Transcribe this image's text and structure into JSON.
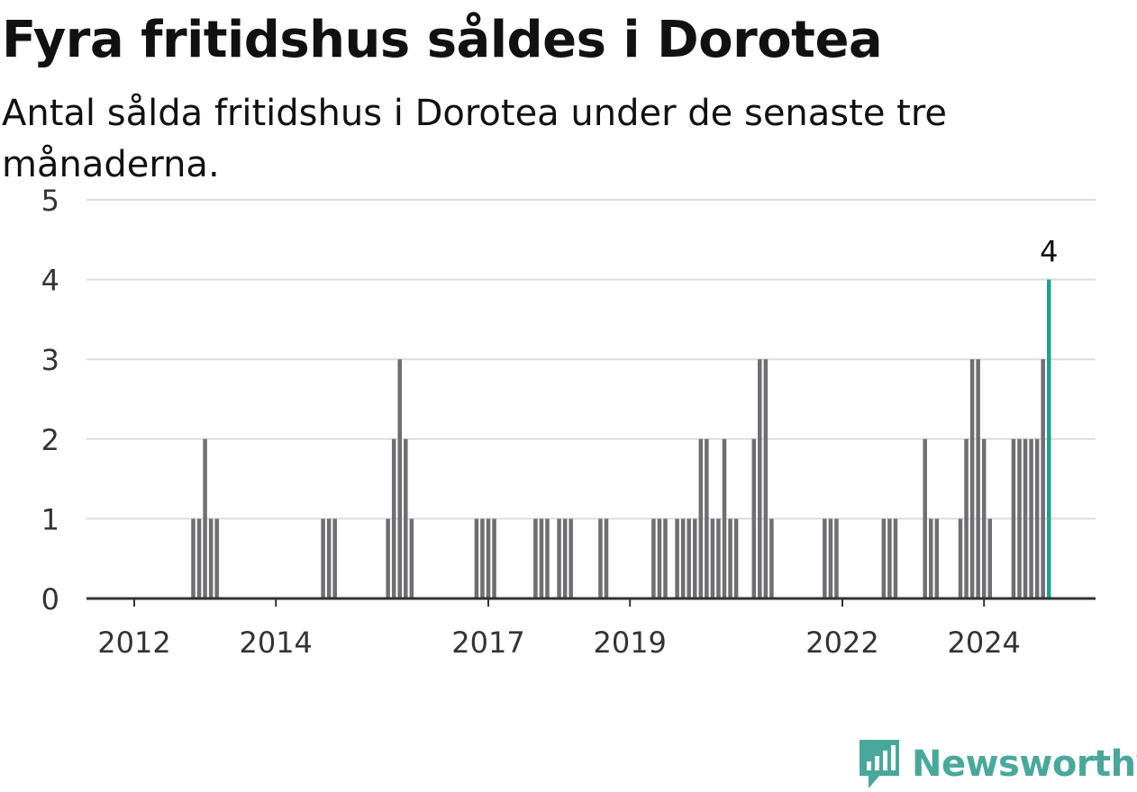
{
  "title": "Fyra fritidshus såldes i Dorotea",
  "subtitle": "Antal sålda fritidshus i Dorotea under de senaste tre månaderna.",
  "brand": {
    "name": "Newsworthy",
    "icon": "newsworthy-logo-icon"
  },
  "colors": {
    "bar": "#6e6e73",
    "highlight": "#1ea191",
    "grid": "#dddddd",
    "axis": "#333333",
    "brand": "#49a89c"
  },
  "chart_data": {
    "type": "bar",
    "title": "Fyra fritidshus såldes i Dorotea",
    "subtitle": "Antal sålda fritidshus i Dorotea under de senaste tre månaderna.",
    "xlabel": "",
    "ylabel": "",
    "ylim": [
      0,
      5
    ],
    "yticks": [
      0,
      1,
      2,
      3,
      4,
      5
    ],
    "grid": true,
    "legend": "none",
    "x_ticks": [
      {
        "label": "2012",
        "date": "2012-01"
      },
      {
        "label": "2014",
        "date": "2014-01"
      },
      {
        "label": "2017",
        "date": "2017-01"
      },
      {
        "label": "2019",
        "date": "2019-01"
      },
      {
        "label": "2022",
        "date": "2022-01"
      },
      {
        "label": "2024",
        "date": "2024-01"
      }
    ],
    "x_range": [
      "2011-07",
      "2025-10"
    ],
    "series": [
      {
        "values": [
          {
            "date": "2012-11",
            "value": 1
          },
          {
            "date": "2012-12",
            "value": 1
          },
          {
            "date": "2013-01",
            "value": 2
          },
          {
            "date": "2013-02",
            "value": 1
          },
          {
            "date": "2013-03",
            "value": 1
          },
          {
            "date": "2014-09",
            "value": 1
          },
          {
            "date": "2014-10",
            "value": 1
          },
          {
            "date": "2014-11",
            "value": 1
          },
          {
            "date": "2015-08",
            "value": 1
          },
          {
            "date": "2015-09",
            "value": 2
          },
          {
            "date": "2015-10",
            "value": 3
          },
          {
            "date": "2015-11",
            "value": 2
          },
          {
            "date": "2015-12",
            "value": 1
          },
          {
            "date": "2016-11",
            "value": 1
          },
          {
            "date": "2016-12",
            "value": 1
          },
          {
            "date": "2017-01",
            "value": 1
          },
          {
            "date": "2017-02",
            "value": 1
          },
          {
            "date": "2017-09",
            "value": 1
          },
          {
            "date": "2017-10",
            "value": 1
          },
          {
            "date": "2017-11",
            "value": 1
          },
          {
            "date": "2018-01",
            "value": 1
          },
          {
            "date": "2018-02",
            "value": 1
          },
          {
            "date": "2018-03",
            "value": 1
          },
          {
            "date": "2018-08",
            "value": 1
          },
          {
            "date": "2018-09",
            "value": 1
          },
          {
            "date": "2019-05",
            "value": 1
          },
          {
            "date": "2019-06",
            "value": 1
          },
          {
            "date": "2019-07",
            "value": 1
          },
          {
            "date": "2019-09",
            "value": 1
          },
          {
            "date": "2019-10",
            "value": 1
          },
          {
            "date": "2019-11",
            "value": 1
          },
          {
            "date": "2019-12",
            "value": 1
          },
          {
            "date": "2020-01",
            "value": 2
          },
          {
            "date": "2020-02",
            "value": 2
          },
          {
            "date": "2020-03",
            "value": 1
          },
          {
            "date": "2020-04",
            "value": 1
          },
          {
            "date": "2020-05",
            "value": 2
          },
          {
            "date": "2020-06",
            "value": 1
          },
          {
            "date": "2020-07",
            "value": 1
          },
          {
            "date": "2020-10",
            "value": 2
          },
          {
            "date": "2020-11",
            "value": 3
          },
          {
            "date": "2020-12",
            "value": 3
          },
          {
            "date": "2021-01",
            "value": 1
          },
          {
            "date": "2021-10",
            "value": 1
          },
          {
            "date": "2021-11",
            "value": 1
          },
          {
            "date": "2021-12",
            "value": 1
          },
          {
            "date": "2022-08",
            "value": 1
          },
          {
            "date": "2022-09",
            "value": 1
          },
          {
            "date": "2022-10",
            "value": 1
          },
          {
            "date": "2023-03",
            "value": 2
          },
          {
            "date": "2023-04",
            "value": 1
          },
          {
            "date": "2023-05",
            "value": 1
          },
          {
            "date": "2023-09",
            "value": 1
          },
          {
            "date": "2023-10",
            "value": 2
          },
          {
            "date": "2023-11",
            "value": 3
          },
          {
            "date": "2023-12",
            "value": 3
          },
          {
            "date": "2024-01",
            "value": 2
          },
          {
            "date": "2024-02",
            "value": 1
          },
          {
            "date": "2024-06",
            "value": 2
          },
          {
            "date": "2024-07",
            "value": 2
          },
          {
            "date": "2024-08",
            "value": 2
          },
          {
            "date": "2024-09",
            "value": 2
          },
          {
            "date": "2024-10",
            "value": 2
          },
          {
            "date": "2024-11",
            "value": 3
          },
          {
            "date": "2024-12",
            "value": 4
          }
        ]
      }
    ],
    "highlight": {
      "date": "2024-12",
      "value": 4,
      "label": "4"
    }
  }
}
